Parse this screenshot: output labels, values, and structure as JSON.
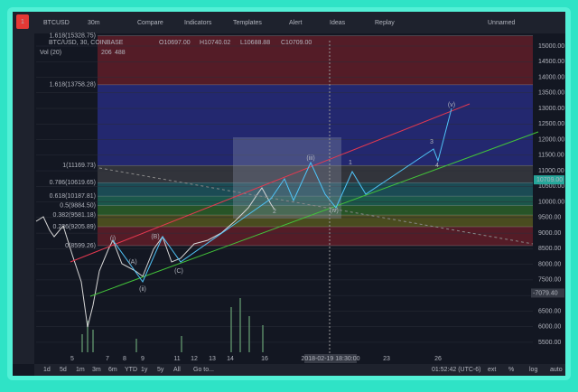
{
  "toolbar": {
    "badge": "1",
    "symbol": "BTCUSD",
    "interval": "30m",
    "items": [
      "Compare",
      "Indicators",
      "Templates",
      "Alert",
      "Ideas",
      "Replay"
    ],
    "layout": "Unnamed"
  },
  "legend": {
    "pair": "BTC/USD, 30, COINBASE",
    "open": "O10697.00",
    "high": "H10740.02",
    "low": "L10688.88",
    "close": "C10709.00",
    "volume": "Vol (20)",
    "vol_values": [
      "206",
      "488"
    ]
  },
  "price_axis": {
    "labels": [
      "15000.00",
      "14500.00",
      "14000.00",
      "13500.00",
      "13000.00",
      "12500.00",
      "12000.00",
      "11500.00",
      "11000.00",
      "10500.00",
      "10000.00",
      "9500.00",
      "9000.00",
      "8500.00",
      "8000.00",
      "7500.00",
      "7000.00",
      "6500.00",
      "6000.00",
      "5500.00"
    ],
    "last_price": "10709.00",
    "cursor_price": "-7079.40"
  },
  "fib_levels": [
    "1.618(15328.75)",
    "1.618(13758.28)",
    "1(11169.73)",
    "0.786(10619.65)",
    "0.618(10187.81)",
    "0.5(9884.50)",
    "0.382(9581.18)",
    "0.236(9205.89)",
    "0(8599.26)"
  ],
  "waves": [
    "(i)",
    "(ii)",
    "(iii)",
    "(iv)",
    "(v)",
    "1",
    "2",
    "3",
    "4",
    "(A)",
    "(B)",
    "(C)"
  ],
  "time_axis": {
    "labels": [
      "5",
      "7",
      "8",
      "9",
      "11",
      "12",
      "13",
      "14",
      "16",
      "23",
      "26"
    ],
    "cursor_time": "2018-02-19 18:30:00"
  },
  "bottom_bar": {
    "ranges": [
      "1d",
      "5d",
      "1m",
      "3m",
      "6m",
      "YTD",
      "1y",
      "5y",
      "All",
      "Go to..."
    ],
    "clock": "01:52:42 (UTC-6)",
    "options": [
      "ext",
      "%",
      "log",
      "auto"
    ]
  }
}
